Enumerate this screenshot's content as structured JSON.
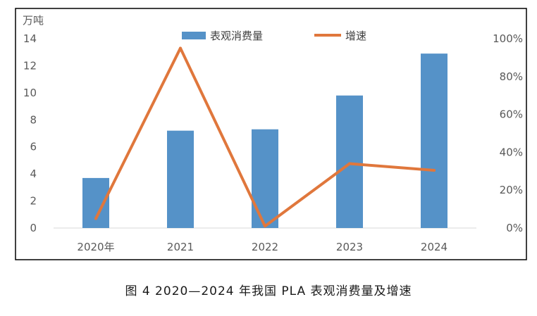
{
  "caption": "图 4  2020—2024 年我国 PLA 表观消费量及增速",
  "chart_data": {
    "type": "bar",
    "categories": [
      "2020年",
      "2021",
      "2022",
      "2023",
      "2024"
    ],
    "series": [
      {
        "name": "表观消费量",
        "type": "bar",
        "axis": "left",
        "color": "#5592C8",
        "values": [
          3.7,
          7.2,
          7.3,
          9.8,
          12.9
        ]
      },
      {
        "name": "增速",
        "type": "line",
        "axis": "right",
        "color": "#E0773C",
        "values": [
          5,
          95,
          1,
          34,
          30.5
        ]
      }
    ],
    "y_left": {
      "unit": "万吨",
      "min": 0,
      "max": 14,
      "ticks": [
        "0",
        "2",
        "4",
        "6",
        "8",
        "10",
        "12",
        "14"
      ]
    },
    "y_right": {
      "min": 0,
      "max": 100,
      "ticks": [
        "0%",
        "20%",
        "40%",
        "60%",
        "80%",
        "100%"
      ]
    },
    "legend": "top-center",
    "grid": false
  }
}
